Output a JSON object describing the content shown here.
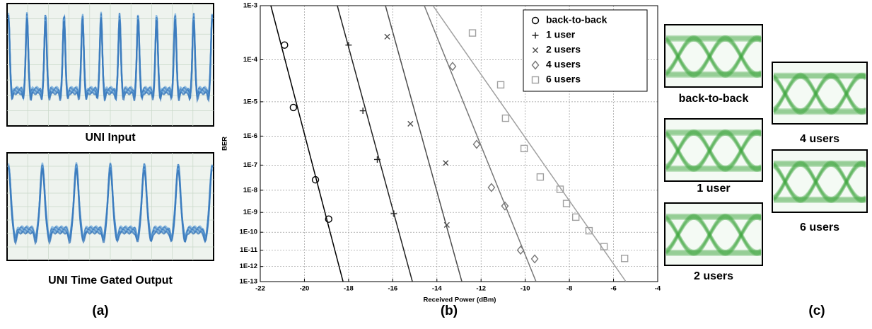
{
  "panel_a": {
    "captions": [
      "UNI Input",
      "UNI Time Gated Output"
    ],
    "label": "(a)"
  },
  "panel_c": {
    "captions": [
      "back-to-back",
      "1 user",
      "2 users",
      "4 users",
      "6 users"
    ],
    "label": "(c)"
  },
  "chart_data": {
    "type": "scatter",
    "panel_label": "(b)",
    "x_label": "Received Power (dBm)",
    "y_label": "BER",
    "xlim": [
      -22,
      -4
    ],
    "xticks": [
      -22,
      -20,
      -18,
      -16,
      -14,
      -12,
      -10,
      -8,
      -6,
      -4
    ],
    "ylim": [
      0.001,
      1e-13
    ],
    "yscale": "log-log",
    "yticks": [
      {
        "value": 0.001,
        "label": "1E-3"
      },
      {
        "value": 0.0001,
        "label": "1E-4"
      },
      {
        "value": 1e-05,
        "label": "1E-5"
      },
      {
        "value": 1e-06,
        "label": "1E-6"
      },
      {
        "value": 1e-07,
        "label": "1E-7"
      },
      {
        "value": 1e-08,
        "label": "1E-8"
      },
      {
        "value": 1e-09,
        "label": "1E-9"
      },
      {
        "value": 1e-10,
        "label": "1E-10"
      },
      {
        "value": 1e-11,
        "label": "1E-11"
      },
      {
        "value": 1e-12,
        "label": "1E-12"
      },
      {
        "value": 1e-13,
        "label": "1E-13"
      }
    ],
    "grid": true,
    "legend": "upper right",
    "series": [
      {
        "name": "back-to-back",
        "color": "#000000",
        "marker": "circle",
        "x": [
          -20.9,
          -20.5,
          -19.5,
          -18.9
        ],
        "values": [
          0.0002,
          7e-06,
          2.7e-08,
          4.7e-10
        ],
        "fit": {
          "x": [
            -21.52,
            -18.25
          ],
          "values": [
            0.001,
            1e-13
          ]
        }
      },
      {
        "name": "1 user",
        "color": "#222222",
        "marker": "plus",
        "x": [
          -18.0,
          -17.35,
          -16.7,
          -15.95
        ],
        "values": [
          0.0002,
          5.7e-06,
          1.6e-07,
          8.7e-10
        ],
        "fit": {
          "x": [
            -18.51,
            -15.11
          ],
          "values": [
            0.001,
            1e-13
          ]
        }
      },
      {
        "name": "2 users",
        "color": "#4d4d4d",
        "marker": "cross",
        "x": [
          -16.25,
          -15.2,
          -13.6,
          -13.55
        ],
        "values": [
          0.00029,
          2.4e-06,
          1.2e-07,
          2.4e-10
        ],
        "fit": {
          "x": [
            -16.33,
            -12.87
          ],
          "values": [
            0.001,
            1e-13
          ]
        }
      },
      {
        "name": "4 users",
        "color": "#777777",
        "marker": "diamond",
        "x": [
          -13.29,
          -12.2,
          -11.53,
          -10.92,
          -10.21,
          -9.57
        ],
        "values": [
          7.2e-05,
          5.4e-07,
          1.3e-08,
          2e-09,
          1e-11,
          3e-12
        ],
        "fit": {
          "x": [
            -14.57,
            -9.51
          ],
          "values": [
            0.001,
            1e-13
          ]
        }
      },
      {
        "name": "6 users",
        "color": "#a0a0a0",
        "marker": "square",
        "x": [
          -12.39,
          -11.11,
          -10.89,
          -10.05,
          -9.32,
          -8.42,
          -8.13,
          -7.71,
          -7.11,
          -6.43,
          -5.5
        ],
        "values": [
          0.00034,
          2.7e-05,
          3.5e-06,
          3.9e-07,
          3.5e-08,
          1.1e-08,
          2.6e-09,
          5.9e-10,
          1.2e-10,
          1.6e-11,
          3.2e-12
        ],
        "fit": {
          "x": [
            -14.18,
            -5.44
          ],
          "values": [
            0.001,
            1e-13
          ]
        }
      }
    ]
  }
}
